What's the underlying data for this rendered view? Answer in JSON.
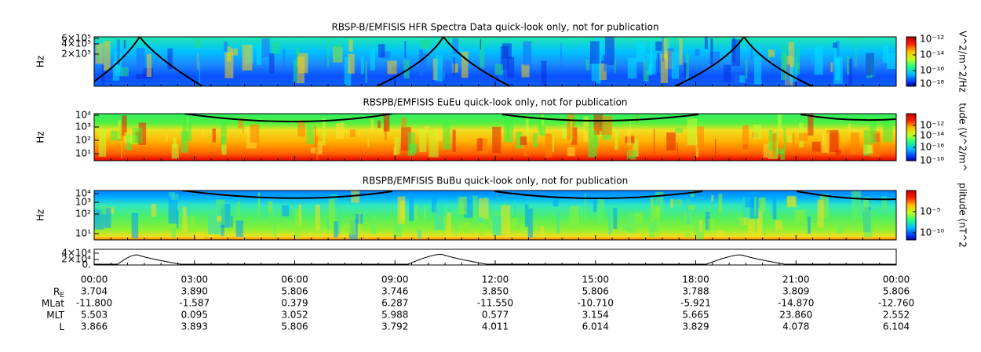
{
  "panels": [
    {
      "title": "RBSP-B/EMFISIS  HFR Spectra Data quick-look only, not for publication",
      "y_label": "Hz",
      "y_ticks": [
        "6×10⁵",
        "4×10⁵",
        "2×10⁵"
      ],
      "colorbar_ticks": [
        "10⁻¹²",
        "10⁻¹⁴",
        "10⁻¹⁶",
        "10⁻¹⁸"
      ],
      "colorbar_label": "V^2/m^2/Hz"
    },
    {
      "title": "RBSPB/EMFISIS  EuEu quick-look only, not for publication",
      "y_label": "Hz",
      "y_ticks": [
        "10⁴",
        "10³",
        "10²",
        "10¹"
      ],
      "colorbar_ticks": [
        "10⁻¹²",
        "10⁻¹⁴",
        "10⁻¹⁶",
        "10⁻¹⁸"
      ],
      "colorbar_label": "tude (V^2/m^"
    },
    {
      "title": "RBSPB/EMFISIS  BuBu quick-look only, not for publication",
      "y_label": "Hz",
      "y_ticks": [
        "10⁴",
        "10³",
        "10²",
        "10¹"
      ],
      "colorbar_ticks": [
        "10⁻⁵",
        "10⁻¹⁰"
      ],
      "colorbar_label": "plitude (nT^2"
    },
    {
      "y_ticks": [
        "4×10⁴",
        "2×10⁴",
        "0."
      ]
    }
  ],
  "time_axis": {
    "labels": [
      "00:00",
      "03:00",
      "06:00",
      "09:00",
      "12:00",
      "15:00",
      "18:00",
      "21:00",
      "00:00"
    ]
  },
  "ephemeris": [
    {
      "label": "R",
      "sub": "E",
      "values": [
        "3.704",
        "3.890",
        "5.806",
        "3.746",
        "3.850",
        "5.806",
        "3.788",
        "3.809",
        "5.806"
      ]
    },
    {
      "label": "MLat",
      "values": [
        "-11.800",
        "-1.587",
        "0.379",
        "6.287",
        "-11.550",
        "-10.710",
        "-5.921",
        "-14.870",
        "-12.760"
      ]
    },
    {
      "label": "MLT",
      "values": [
        "5.503",
        "0.095",
        "3.052",
        "5.988",
        "0.577",
        "3.154",
        "5.665",
        "23.860",
        "2.552"
      ]
    },
    {
      "label": "L",
      "values": [
        "3.866",
        "3.893",
        "5.806",
        "3.792",
        "4.011",
        "6.014",
        "3.829",
        "4.078",
        "6.104"
      ]
    }
  ]
}
